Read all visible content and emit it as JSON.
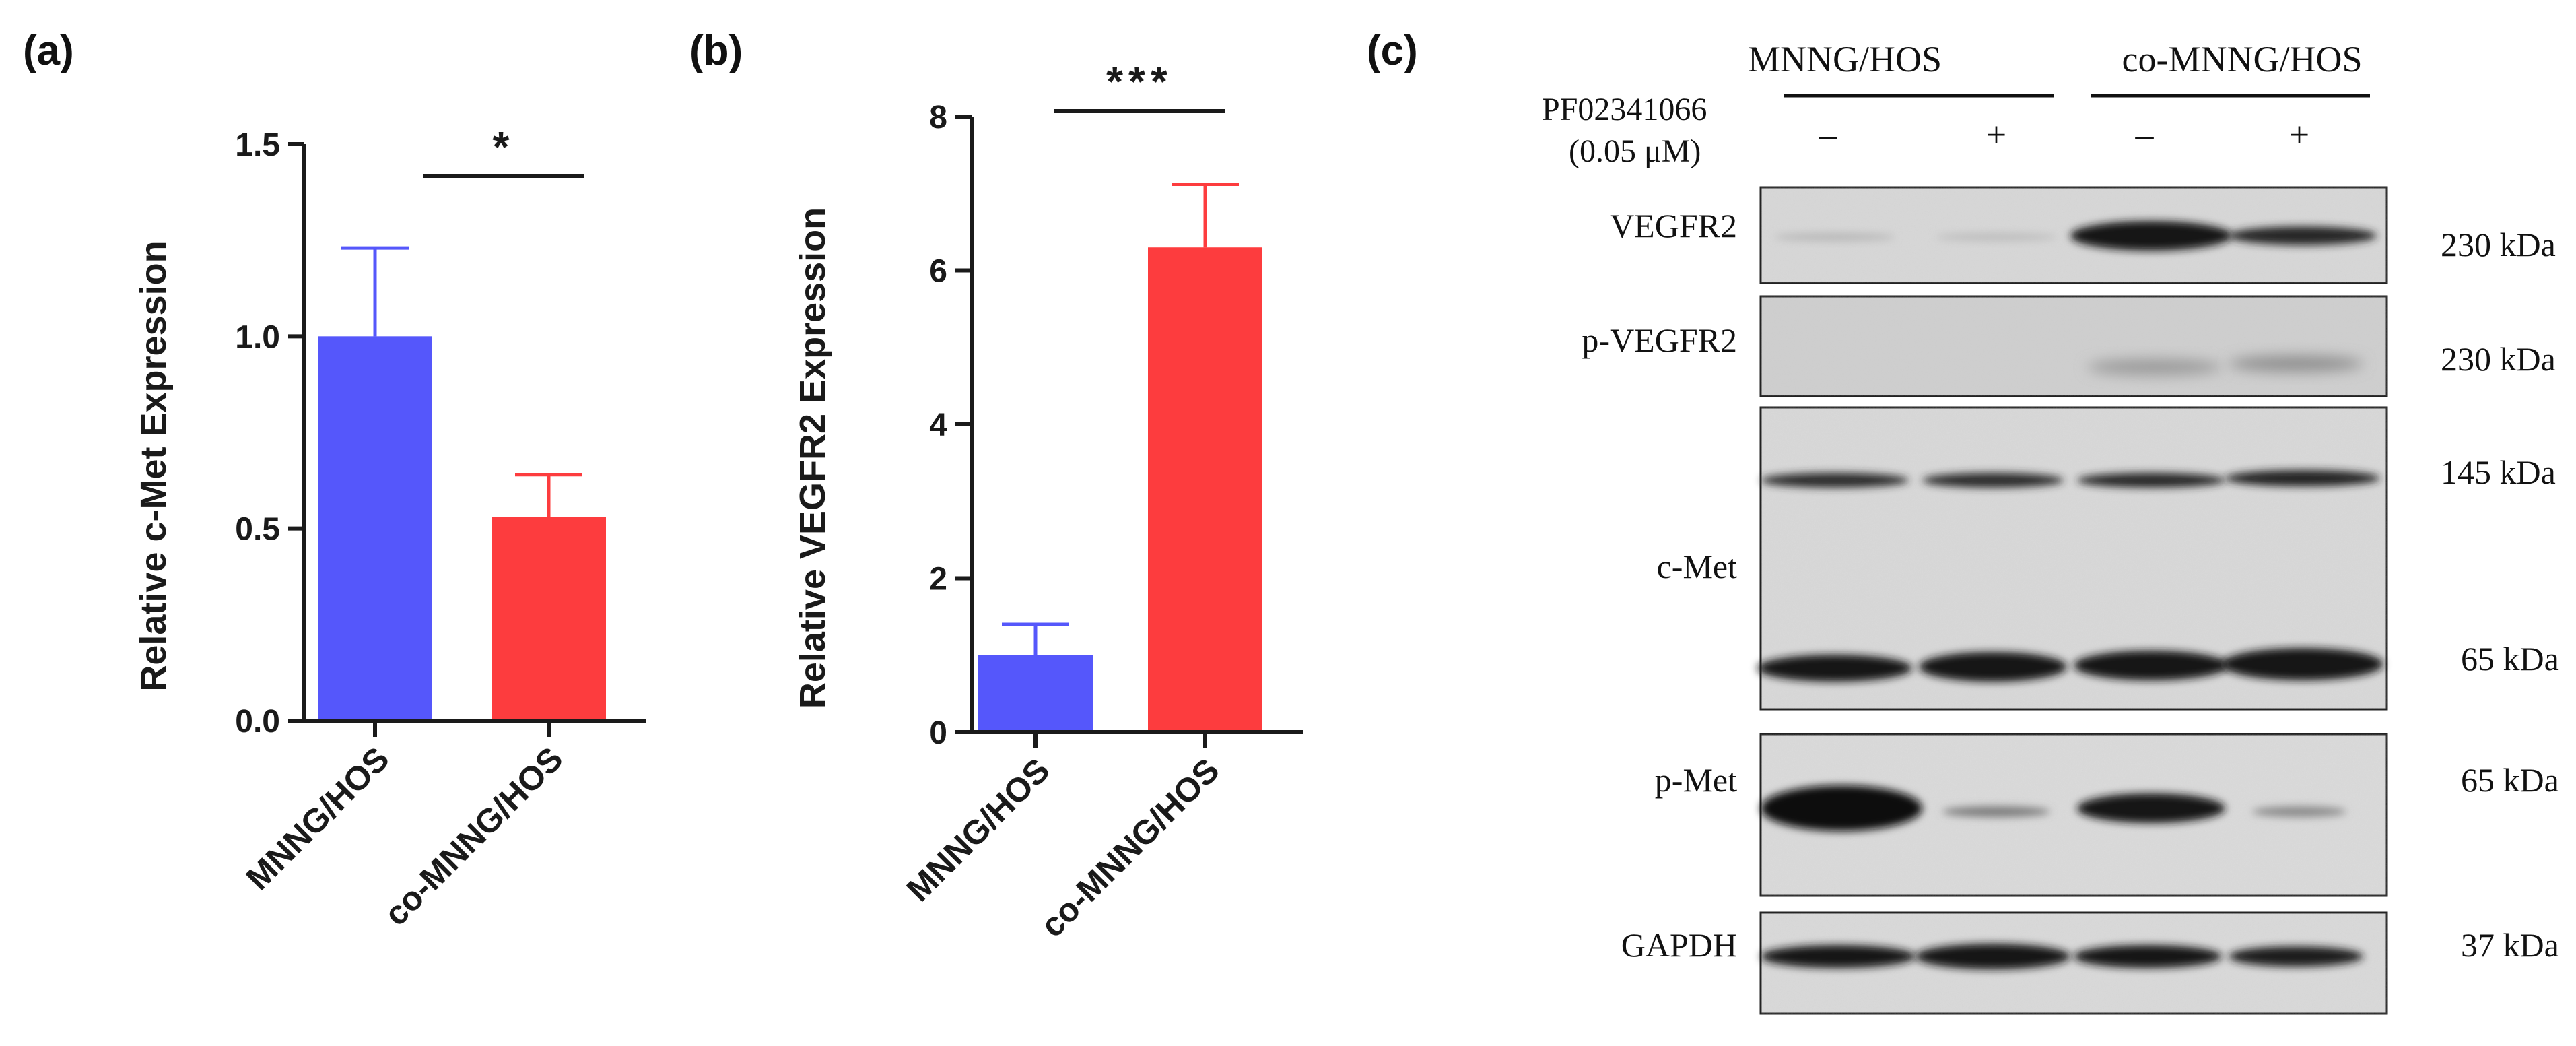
{
  "colors": {
    "blue": "#5557FB",
    "red": "#FD3C3E",
    "axis": "#1a1a1a",
    "text": "#111111"
  },
  "panels": {
    "a": "(a)",
    "b": "(b)",
    "c": "(c)"
  },
  "chart_data": [
    {
      "type": "bar",
      "panel": "(a)",
      "categories": [
        "MNNG/HOS",
        "co-MNNG/HOS"
      ],
      "values": [
        1.0,
        0.53
      ],
      "errors": [
        0.23,
        0.11
      ],
      "ylabel": "Relative c-Met Expression",
      "ylim": [
        0,
        1.5
      ],
      "yticks": [
        0.0,
        0.5,
        1.0,
        1.5
      ],
      "ytick_labels": [
        "0.0",
        "0.5",
        "1.0",
        "1.5"
      ],
      "significance": "*"
    },
    {
      "type": "bar",
      "panel": "(b)",
      "categories": [
        "MNNG/HOS",
        "co-MNNG/HOS"
      ],
      "values": [
        1.0,
        6.3
      ],
      "errors": [
        0.4,
        0.82
      ],
      "ylabel": "Relative VEGFR2 Expression",
      "ylim": [
        0,
        8
      ],
      "yticks": [
        0,
        2,
        4,
        6,
        8
      ],
      "ytick_labels": [
        "0",
        "2",
        "4",
        "6",
        "8"
      ],
      "significance": "***"
    }
  ],
  "blot": {
    "groups": [
      "MNNG/HOS",
      "co-MNNG/HOS"
    ],
    "treatment_label_1": "PF02341066",
    "treatment_label_2": "(0.05 μM)",
    "lane_signs": [
      "–",
      "+",
      "–",
      "+"
    ],
    "rows": [
      {
        "label": "VEGFR2",
        "sizes": [
          "230 kDa"
        ]
      },
      {
        "label": "p-VEGFR2",
        "sizes": [
          "230 kDa"
        ]
      },
      {
        "label": "c-Met",
        "sizes": [
          "145 kDa",
          "65 kDa"
        ]
      },
      {
        "label": "p-Met",
        "sizes": [
          "65 kDa"
        ]
      },
      {
        "label": "GAPDH",
        "sizes": [
          "37 kDa"
        ]
      }
    ]
  }
}
